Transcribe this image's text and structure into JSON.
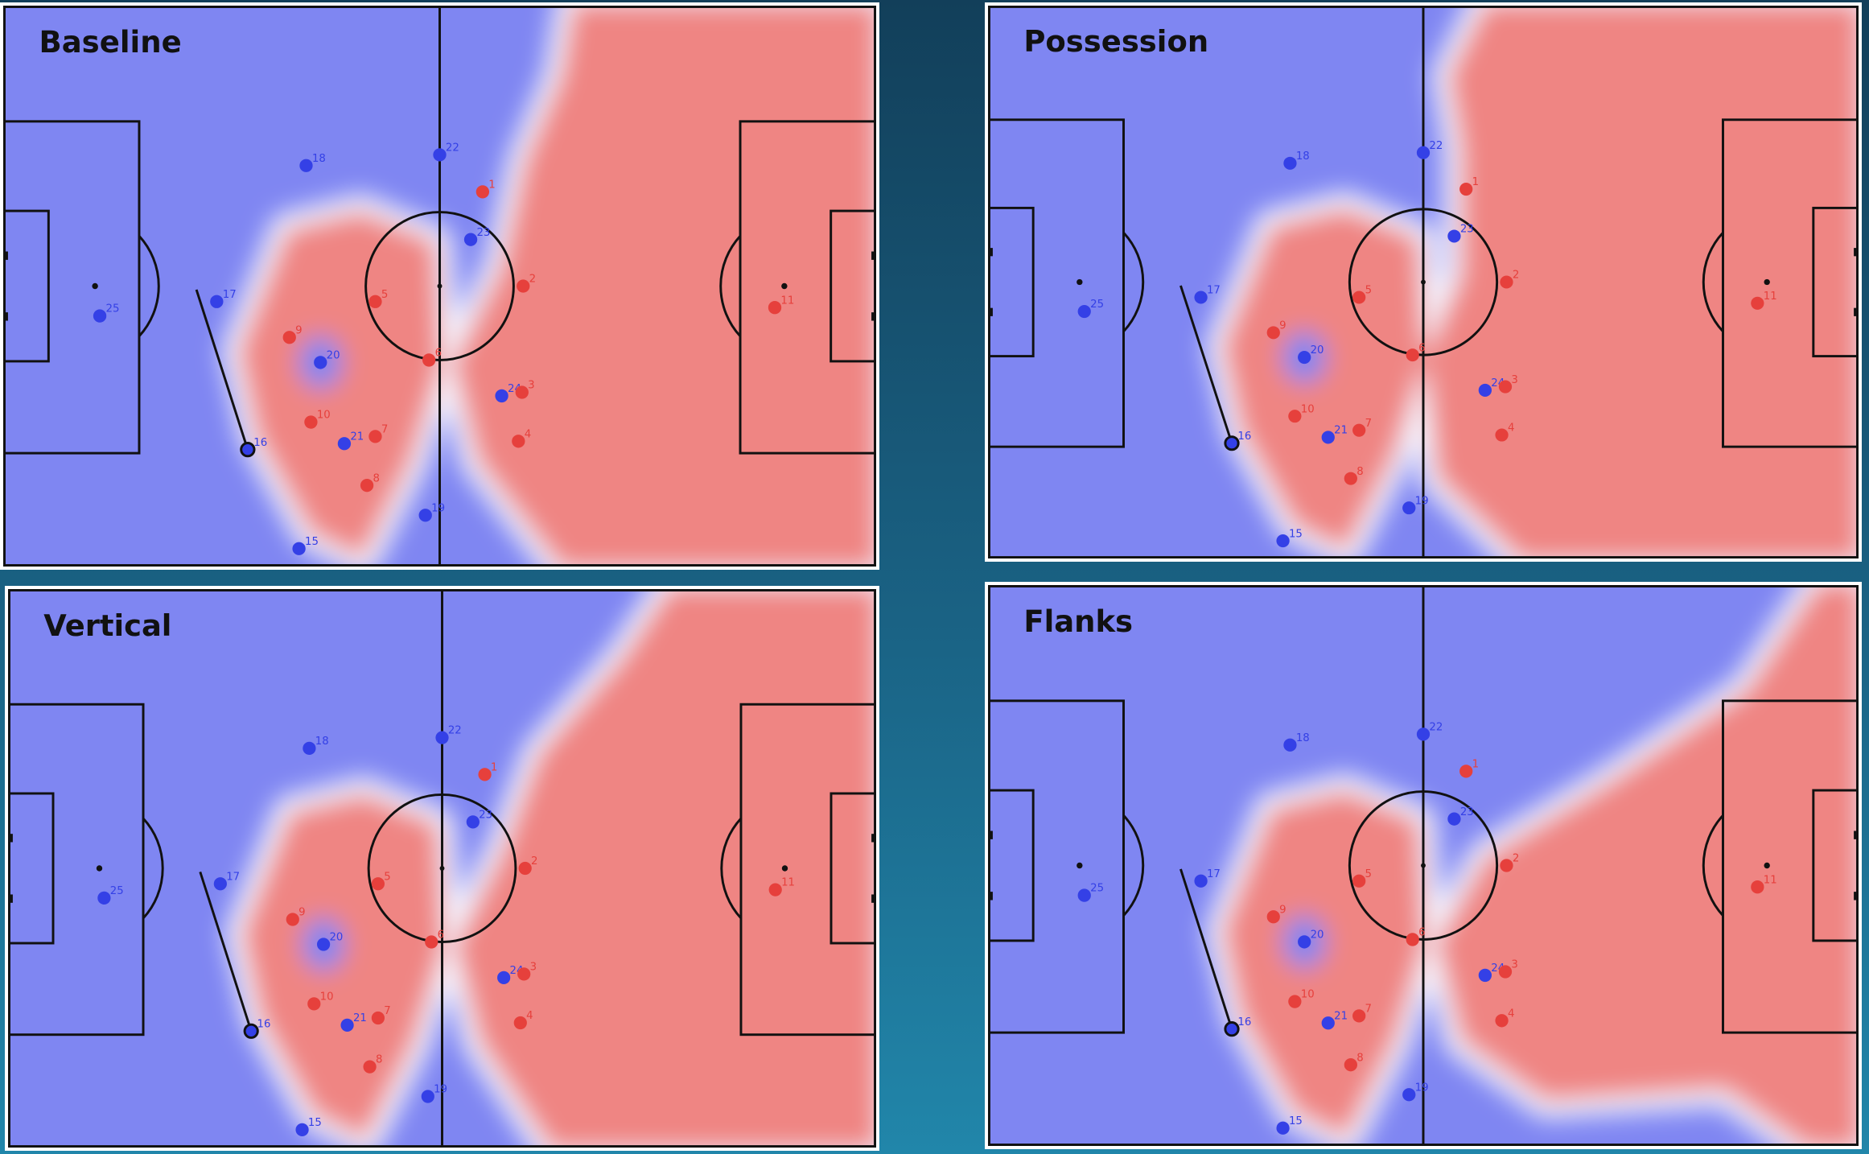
{
  "panels": [
    {
      "title": "Baseline",
      "blue_players": [
        "18",
        "22",
        "23",
        "17",
        "25",
        "20",
        "24",
        "21",
        "16",
        "19",
        "15"
      ],
      "red_players": [
        "1",
        "2",
        "5",
        "9",
        "6",
        "3",
        "10",
        "7",
        "4",
        "8",
        "11"
      ]
    },
    {
      "title": "Possession",
      "blue_players": [
        "18",
        "22",
        "23",
        "17",
        "25",
        "20",
        "24",
        "21",
        "16",
        "19",
        "15"
      ],
      "red_players": [
        "1",
        "2",
        "5",
        "9",
        "6",
        "3",
        "10",
        "7",
        "4",
        "8",
        "11"
      ]
    },
    {
      "title": "Vertical",
      "blue_players": [
        "18",
        "22",
        "23",
        "17",
        "25",
        "20",
        "24",
        "21",
        "16",
        "19",
        "15"
      ],
      "red_players": [
        "1",
        "2",
        "5",
        "9",
        "6",
        "3",
        "10",
        "7",
        "4",
        "8",
        "11"
      ]
    },
    {
      "title": "Flanks",
      "blue_players": [
        "18",
        "22",
        "23",
        "17",
        "25",
        "20",
        "24",
        "21",
        "16",
        "19",
        "15"
      ],
      "red_players": [
        "1",
        "2",
        "5",
        "9",
        "6",
        "3",
        "10",
        "7",
        "4",
        "8",
        "11"
      ]
    }
  ]
}
